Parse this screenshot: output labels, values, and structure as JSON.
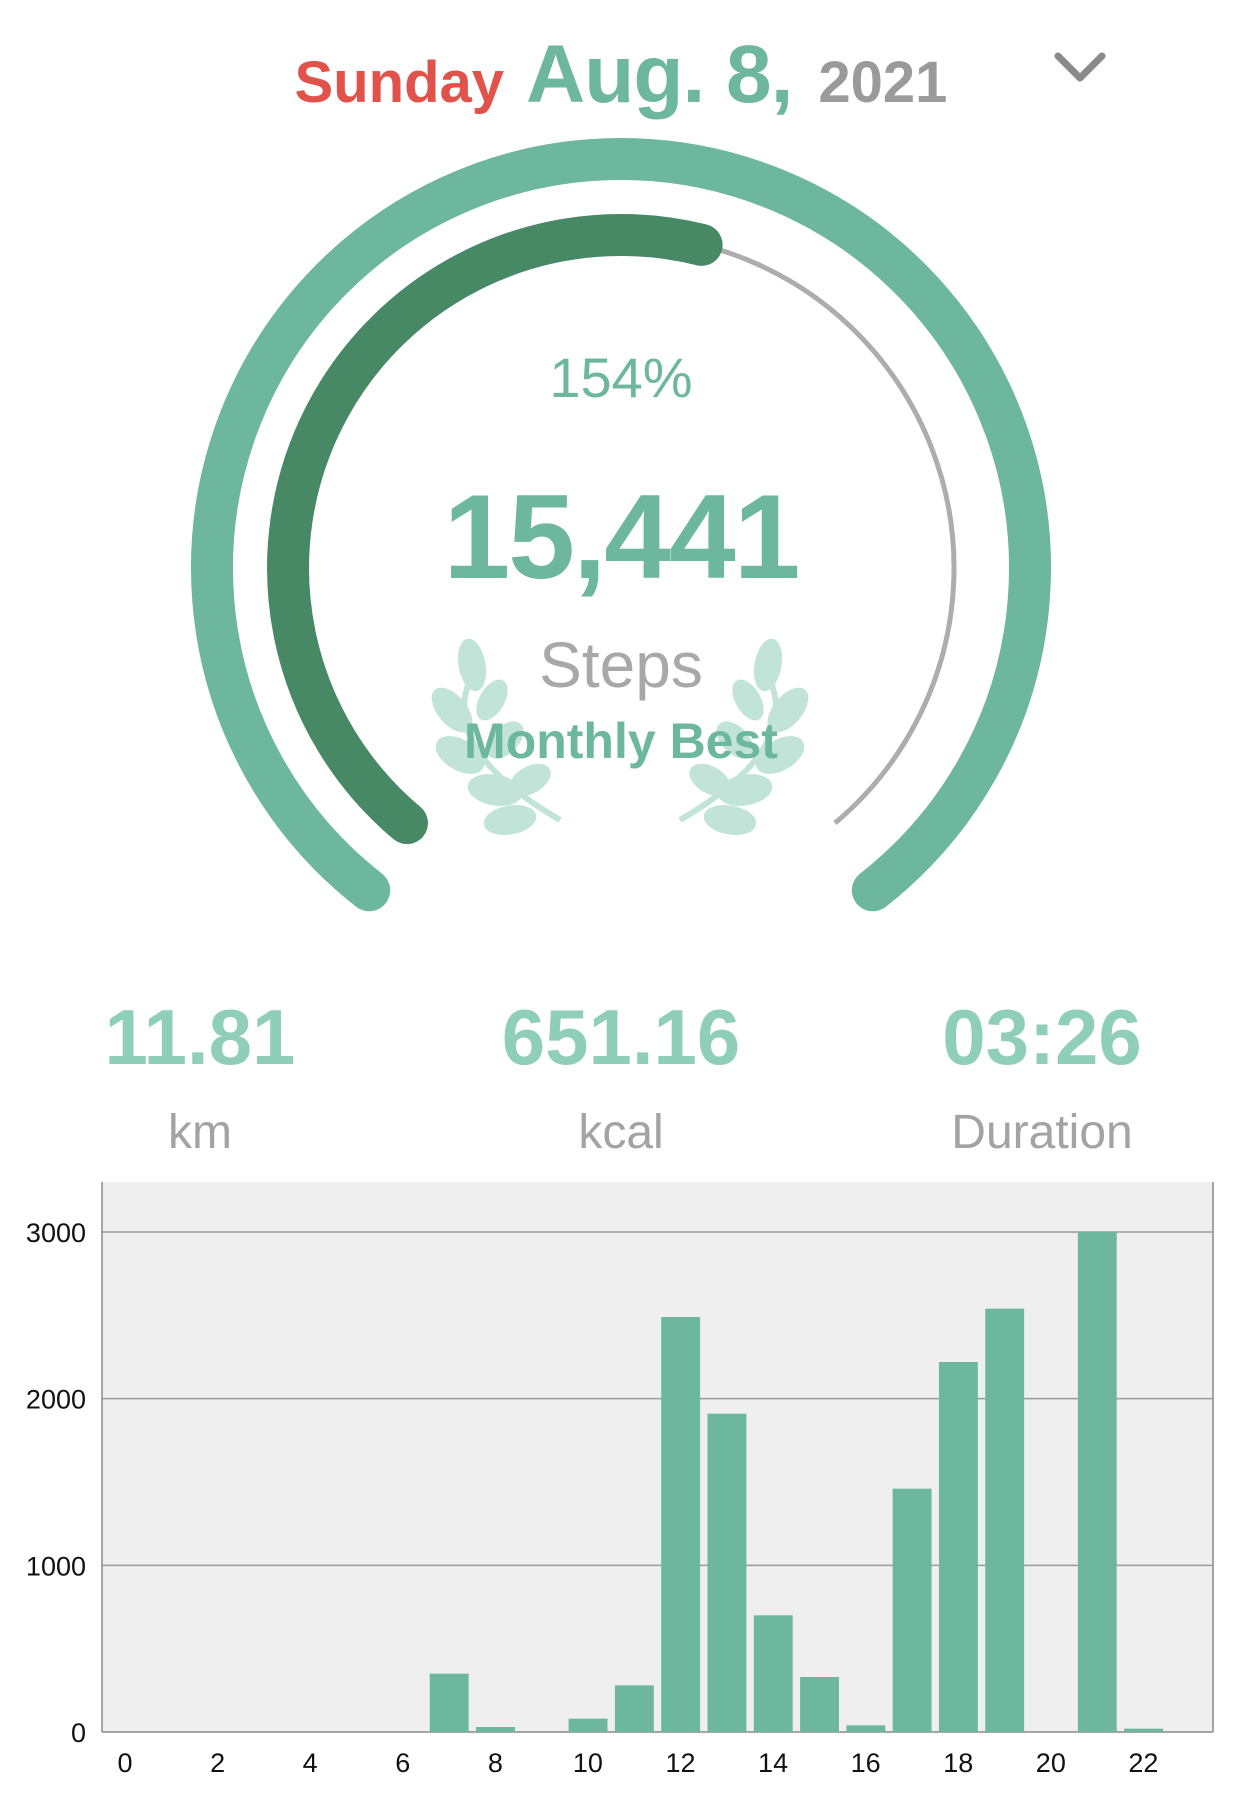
{
  "header": {
    "weekday": "Sunday",
    "month_day": "Aug. 8,",
    "year": "2021",
    "dropdown_icon": "chevron-down-icon"
  },
  "gauge": {
    "percent_text": "154%",
    "percent_value": 1.54,
    "steps": "15,441",
    "steps_label": "Steps",
    "badge": "Monthly Best",
    "badge_icon": "laurel-wreath-icon"
  },
  "stats": [
    {
      "value": "11.81",
      "unit": "km"
    },
    {
      "value": "651.16",
      "unit": "kcal"
    },
    {
      "value": "03:26",
      "unit": "Duration"
    }
  ],
  "colors": {
    "accent": "#6cb79e",
    "accent_dark": "#478865",
    "weekday": "#e0524a",
    "stat_value": "#8fceb8",
    "chart_bg": "#efefef",
    "muted": "#a8a8a8"
  },
  "chart_data": {
    "type": "bar",
    "categories": [
      0,
      1,
      2,
      3,
      4,
      5,
      6,
      7,
      8,
      9,
      10,
      11,
      12,
      13,
      14,
      15,
      16,
      17,
      18,
      19,
      20,
      21,
      22,
      23
    ],
    "values": [
      0,
      0,
      0,
      0,
      0,
      0,
      0,
      350,
      30,
      0,
      80,
      280,
      2490,
      1910,
      700,
      330,
      40,
      1460,
      2220,
      2540,
      0,
      3000,
      20,
      0
    ],
    "x_ticks": [
      0,
      2,
      4,
      6,
      8,
      10,
      12,
      14,
      16,
      18,
      20,
      22
    ],
    "y_ticks": [
      0,
      1000,
      2000,
      3000
    ],
    "ylim": [
      0,
      3300
    ],
    "grid": true,
    "title": "",
    "xlabel": "",
    "ylabel": ""
  }
}
